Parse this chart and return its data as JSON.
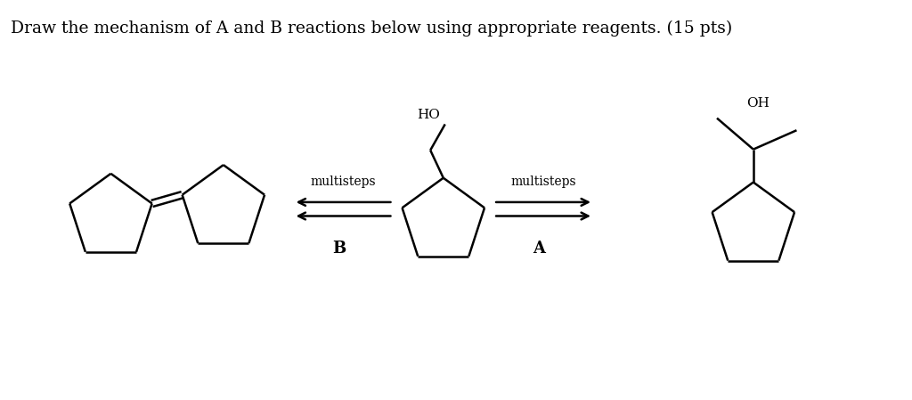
{
  "title": "Draw the mechanism of A and B reactions below using appropriate reagents. (15 pts)",
  "title_fontsize": 13.5,
  "bg_color": "#ffffff",
  "line_color": "#000000",
  "line_width": 1.8,
  "label_B": "B",
  "label_A": "A",
  "label_multisteps": "multisteps",
  "label_HO_center": "HO",
  "label_OH_right": "OH",
  "figsize": [
    10.24,
    4.49
  ],
  "dpi": 100
}
